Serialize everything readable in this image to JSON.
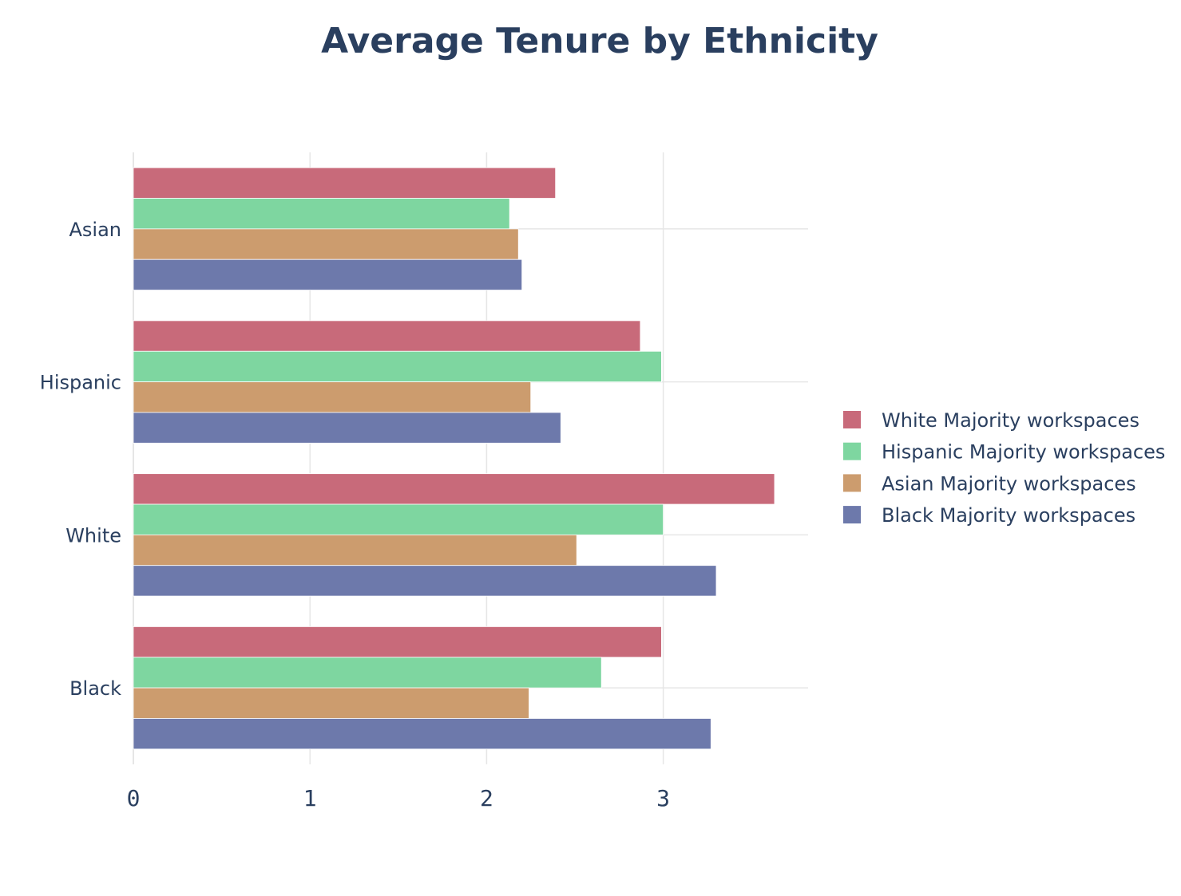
{
  "chart_data": {
    "type": "bar",
    "orientation": "horizontal",
    "title": "Average Tenure by Ethnicity",
    "xlabel": "",
    "ylabel": "",
    "categories": [
      "Asian",
      "Hispanic",
      "White",
      "Black"
    ],
    "series": [
      {
        "name": "White Majority workspaces",
        "color": "#c86a7a",
        "values": [
          2.39,
          2.87,
          3.63,
          2.99
        ]
      },
      {
        "name": "Hispanic Majority workspaces",
        "color": "#7ed6a0",
        "values": [
          2.13,
          2.99,
          3.0,
          2.65
        ]
      },
      {
        "name": "Asian Majority workspaces",
        "color": "#cc9c6e",
        "values": [
          2.18,
          2.25,
          2.51,
          2.24
        ]
      },
      {
        "name": "Black Majority workspaces",
        "color": "#6d79ab",
        "values": [
          2.2,
          2.42,
          3.3,
          3.27
        ]
      }
    ],
    "xlim": [
      0,
      3.82
    ],
    "xticks": [
      "0",
      "1",
      "2",
      "3"
    ],
    "grid": true,
    "legend_position": "right"
  }
}
